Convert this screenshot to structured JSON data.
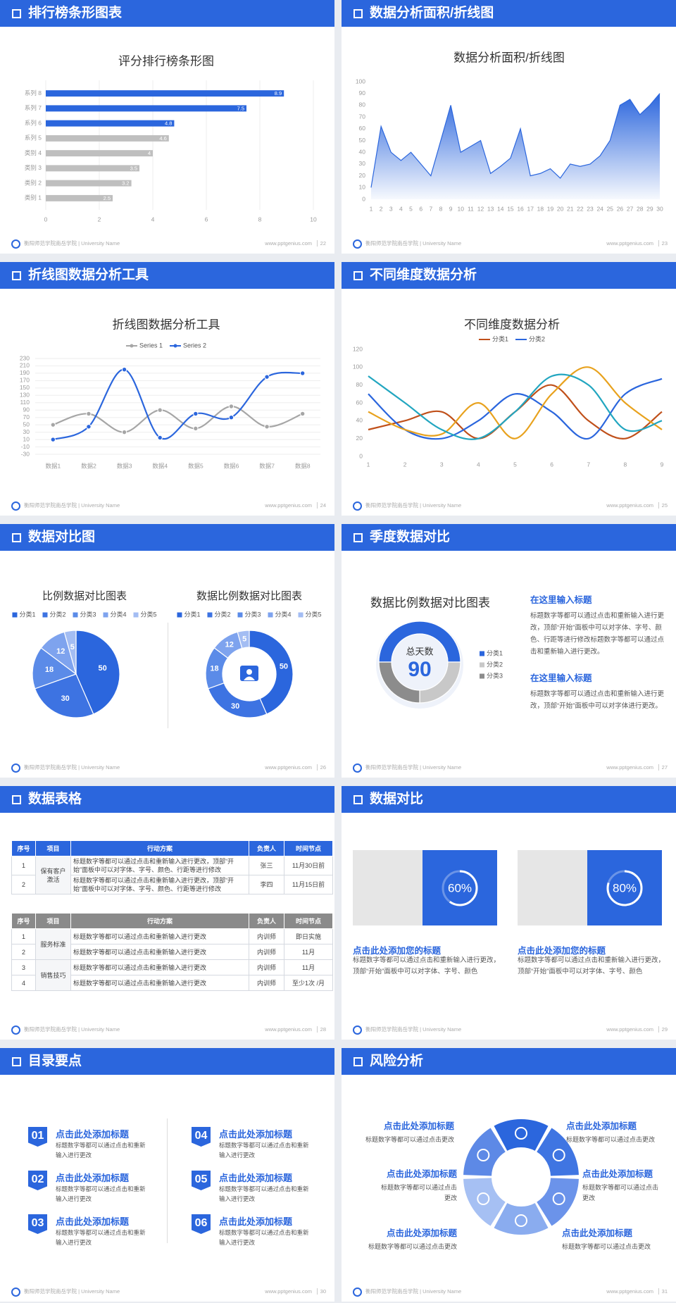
{
  "slides": [
    {
      "title": "排行榜条形图表",
      "footer": {
        "school": "衡阳师范学院南岳学院 | University Name",
        "site": "www.pptgenius.com",
        "page": 22
      },
      "chart_data": {
        "type": "hbar",
        "title": "评分排行榜条形图",
        "categories": [
          "系列 8",
          "系列 7",
          "系列 6",
          "系列 5",
          "类别 4",
          "类别 3",
          "类别 2",
          "类别 1"
        ],
        "values": [
          8.9,
          7.5,
          4.8,
          4.6,
          4,
          3.5,
          3.2,
          2.5
        ],
        "colors": [
          "#2b66dd",
          "#2b66dd",
          "#2b66dd",
          "#bfbfbf",
          "#bfbfbf",
          "#bfbfbf",
          "#bfbfbf",
          "#bfbfbf"
        ],
        "xlim": [
          0,
          10
        ],
        "xticks": [
          0,
          2,
          4,
          6,
          8,
          10
        ],
        "grid": true
      }
    },
    {
      "title": "数据分析面积/折线图",
      "footer": {
        "school": "衡阳师范学院南岳学院 | University Name",
        "site": "www.pptgenius.com",
        "page": 23
      },
      "chart_data": {
        "type": "area",
        "title": "数据分析面积/折线图",
        "x": [
          1,
          2,
          3,
          4,
          5,
          6,
          7,
          8,
          9,
          10,
          11,
          12,
          13,
          14,
          15,
          16,
          17,
          18,
          19,
          20,
          21,
          22,
          23,
          24,
          25,
          26,
          27,
          28,
          29,
          30
        ],
        "values": [
          10,
          62,
          40,
          33,
          40,
          30,
          20,
          50,
          80,
          40,
          45,
          50,
          22,
          28,
          35,
          60,
          20,
          22,
          26,
          18,
          30,
          28,
          30,
          37,
          50,
          80,
          85,
          72,
          80,
          90
        ],
        "color": "#2b66dd",
        "xlim": [
          1,
          30
        ],
        "xticks": [
          1,
          2,
          3,
          4,
          5,
          6,
          7,
          8,
          9,
          10,
          11,
          12,
          13,
          14,
          15,
          16,
          17,
          18,
          19,
          20,
          21,
          22,
          23,
          24,
          25,
          26,
          27,
          28,
          29,
          30
        ],
        "ylim": [
          0,
          100
        ],
        "yticks": [
          0,
          10,
          20,
          30,
          40,
          50,
          60,
          70,
          80,
          90,
          100
        ]
      }
    },
    {
      "title": "折线图数据分析工具",
      "footer": {
        "school": "衡阳师范学院南岳学院 | University Name",
        "site": "www.pptgenius.com",
        "page": 24
      },
      "chart_data": {
        "type": "line",
        "title": "折线图数据分析工具",
        "categories": [
          "数据1",
          "数据2",
          "数据3",
          "数据4",
          "数据5",
          "数据6",
          "数据7",
          "数据8"
        ],
        "series": [
          {
            "name": "Series 1",
            "color": "#a6a6a6",
            "values": [
              50,
              80,
              30,
              90,
              40,
              100,
              45,
              80
            ]
          },
          {
            "name": "Series 2",
            "color": "#2b66dd",
            "values": [
              10,
              45,
              200,
              15,
              80,
              70,
              180,
              190
            ]
          }
        ],
        "ylim": [
          -30,
          230
        ],
        "yticks": [
          -30,
          -10,
          10,
          30,
          50,
          70,
          90,
          110,
          130,
          150,
          170,
          190,
          210,
          230
        ],
        "grid": true,
        "markers": true
      }
    },
    {
      "title": "不同维度数据分析",
      "footer": {
        "school": "衡阳师范学院南岳学院 | University Name",
        "site": "www.pptgenius.com",
        "page": 25
      },
      "chart_data": {
        "type": "line",
        "title": "不同维度数据分析",
        "x": [
          1,
          2,
          3,
          4,
          5,
          6,
          7,
          8,
          9
        ],
        "series": [
          {
            "name": "分类1",
            "color": "#c0501a",
            "values": [
              30,
              40,
              50,
              20,
              50,
              80,
              40,
              20,
              50
            ]
          },
          {
            "name": "分类2",
            "color": "#2b66dd",
            "values": [
              70,
              30,
              20,
              40,
              70,
              50,
              20,
              70,
              87
            ]
          },
          {
            "color": "#e8a21e",
            "values": [
              50,
              30,
              25,
              60,
              20,
              70,
              100,
              60,
              30
            ]
          },
          {
            "color": "#22a6c0",
            "values": [
              90,
              60,
              30,
              20,
              50,
              90,
              80,
              30,
              40
            ]
          }
        ],
        "xlim": [
          1,
          9
        ],
        "xticks": [
          1,
          2,
          3,
          4,
          5,
          6,
          7,
          8,
          9
        ],
        "ylim": [
          0,
          120
        ],
        "yticks": [
          0,
          20,
          40,
          60,
          80,
          100,
          120
        ],
        "grid": false,
        "markers": false
      }
    },
    {
      "title": "数据对比图",
      "footer": {
        "school": "衡阳师范学院南岳学院 | University Name",
        "site": "www.pptgenius.com",
        "page": 26
      },
      "chart_data": [
        {
          "type": "pie",
          "title": "比例数据对比图表",
          "categories": [
            "分类1",
            "分类2",
            "分类3",
            "分类4",
            "分类5"
          ],
          "values": [
            50,
            30,
            18,
            12,
            5
          ],
          "colors": [
            "#2b66dd",
            "#3d73e2",
            "#5b8be8",
            "#7ea3ee",
            "#a3bdf3"
          ],
          "data_labels": true
        },
        {
          "type": "donut",
          "title": "数据比例数据对比图表",
          "categories": [
            "分类1",
            "分类2",
            "分类3",
            "分类4",
            "分类5"
          ],
          "values": [
            50,
            30,
            18,
            12,
            5
          ],
          "colors": [
            "#2b66dd",
            "#3d73e2",
            "#5b8be8",
            "#7ea3ee",
            "#a3bdf3"
          ],
          "data_labels": true
        }
      ]
    },
    {
      "title": "季度数据对比",
      "footer": {
        "school": "衡阳师范学院南岳学院 | University Name",
        "site": "www.pptgenius.com",
        "page": 27
      },
      "chart_data": {
        "type": "donut",
        "title": "数据比例数据对比图表",
        "categories": [
          "分类1",
          "分类2",
          "分类3"
        ],
        "values": [
          50,
          25,
          25
        ],
        "colors": [
          "#2b66dd",
          "#c8c8c8",
          "#8c8c8c"
        ],
        "data_labels": false,
        "center_label": "总天数",
        "center_value": 90
      },
      "blocks": [
        {
          "title": "在这里输入标题",
          "text": "标题数字等都可以通过点击和重新输入进行更改，顶部“开始”面板中可以对字体、字号、颜色、行距等进行修改标题数字等都可以通过点击和重新输入进行更改。"
        },
        {
          "title": "在这里输入标题",
          "text": "标题数字等都可以通过点击和重新输入进行更改，顶部“开始”面板中可以对字体进行更改。"
        }
      ]
    },
    {
      "title": "数据表格",
      "footer": {
        "school": "衡阳师范学院南岳学院 | University Name",
        "site": "www.pptgenius.com",
        "page": 28
      },
      "tables": [
        {
          "header_color": "#2b66dd",
          "header": [
            "序号",
            "项目",
            "行动方案",
            "负责人",
            "时间节点"
          ],
          "groups": [
            {
              "project": "保有客户激活",
              "rows": [
                [
                  1,
                  "标题数字等都可以通过点击和重新输入进行更改，顶部“开始”面板中可以对字体、字号、颜色、行距等进行修改",
                  "张三",
                  "11月30日前"
                ],
                [
                  2,
                  "标题数字等都可以通过点击和重新输入进行更改，顶部“开始”面板中可以对字体、字号、颜色、行距等进行修改",
                  "李四",
                  "11月15日前"
                ]
              ]
            }
          ]
        },
        {
          "header_color": "#8a8a8a",
          "header": [
            "序号",
            "项目",
            "行动方案",
            "负责人",
            "时间节点"
          ],
          "groups": [
            {
              "project": "服务标准",
              "rows": [
                [
                  1,
                  "标题数字等都可以通过点击和重新输入进行更改",
                  "内训师",
                  "即日实施"
                ],
                [
                  2,
                  "标题数字等都可以通过点击和重新输入进行更改",
                  "内训师",
                  "11月"
                ]
              ]
            },
            {
              "project": "销售技巧",
              "rows": [
                [
                  3,
                  "标题数字等都可以通过点击和重新输入进行更改",
                  "内训师",
                  "11月"
                ],
                [
                  4,
                  "标题数字等都可以通过点击和重新输入进行更改",
                  "内训师",
                  "至少1次 /月"
                ]
              ]
            }
          ]
        }
      ]
    },
    {
      "title": "数据对比",
      "footer": {
        "school": "衡阳师范学院南岳学院 | University Name",
        "site": "www.pptgenius.com",
        "page": 29
      },
      "cards": [
        {
          "progress": {
            "value": 60,
            "label": "60%"
          },
          "title": "点击此处添加您的标题",
          "text": "标题数字等都可以通过点击和重新输入进行更改，顶部“开始”面板中可以对字体、字号、颜色"
        },
        {
          "progress": {
            "value": 80,
            "label": "80%"
          },
          "title": "点击此处添加您的标题",
          "text": "标题数字等都可以通过点击和重新输入进行更改，顶部“开始”面板中可以对字体、字号、颜色"
        }
      ]
    },
    {
      "title": "目录要点",
      "footer": {
        "school": "衡阳师范学院南岳学院 | University Name",
        "site": "www.pptgenius.com",
        "page": 30
      },
      "points": [
        {
          "number": "01",
          "title": "点击此处添加标题",
          "text": "标题数字等都可以通过点击和重新输入进行更改"
        },
        {
          "number": "02",
          "title": "点击此处添加标题",
          "text": "标题数字等都可以通过点击和重新输入进行更改"
        },
        {
          "number": "03",
          "title": "点击此处添加标题",
          "text": "标题数字等都可以通过点击和重新输入进行更改"
        },
        {
          "number": "04",
          "title": "点击此处添加标题",
          "text": "标题数字等都可以通过点击和重新输入进行更改"
        },
        {
          "number": "05",
          "title": "点击此处添加标题",
          "text": "标题数字等都可以通过点击和重新输入进行更改"
        },
        {
          "number": "06",
          "title": "点击此处添加标题",
          "text": "标题数字等都可以通过点击和重新输入进行更改"
        }
      ]
    },
    {
      "title": "风险分析",
      "footer": {
        "school": "衡阳师范学院南岳学院 | University Name",
        "site": "www.pptgenius.com",
        "page": 31
      },
      "risks": [
        {
          "title": "点击此处添加标题",
          "text": "标题数字等都可以通过点击更改"
        },
        {
          "title": "点击此处添加标题",
          "text": "标题数字等都可以通过点击更改"
        },
        {
          "title": "点击此处添加标题",
          "text": "标题数字等都可以通过点击更改"
        },
        {
          "title": "点击此处添加标题",
          "text": "标题数字等都可以通过点击更改"
        },
        {
          "title": "点击此处添加标题",
          "text": "标题数字等都可以通过点击更改"
        },
        {
          "title": "点击此处添加标题",
          "text": "标题数字等都可以通过点击更改"
        }
      ]
    }
  ]
}
